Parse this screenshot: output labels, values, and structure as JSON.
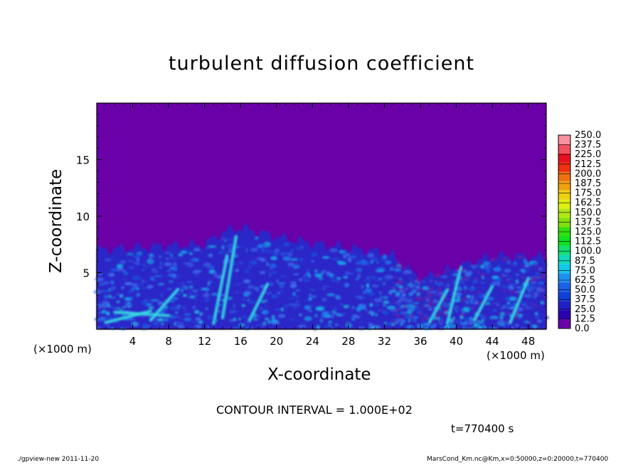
{
  "chart_data": {
    "type": "heatmap",
    "title": "turbulent diffusion coefficient",
    "xlabel": "X-coordinate",
    "ylabel": "Z-coordinate",
    "x_unit": "(×1000 m)",
    "x_unit_right": "(×1000 m)",
    "xlim": [
      0,
      50
    ],
    "ylim": [
      0,
      20
    ],
    "xticks": [
      4,
      8,
      12,
      16,
      20,
      24,
      28,
      32,
      36,
      40,
      44,
      48
    ],
    "yticks": [
      5,
      10,
      15
    ],
    "colorbar": {
      "levels": [
        "0.0",
        "12.5",
        "25.0",
        "37.5",
        "50.0",
        "62.5",
        "75.0",
        "87.5",
        "100.0",
        "112.5",
        "125.0",
        "137.5",
        "150.0",
        "162.5",
        "175.0",
        "187.5",
        "200.0",
        "212.5",
        "225.0",
        "237.5",
        "250.0"
      ],
      "colors": [
        "#6a00a8",
        "#2a00b0",
        "#2020c8",
        "#1040d8",
        "#1a60e8",
        "#1e90f0",
        "#10c8e8",
        "#10d8b8",
        "#10e070",
        "#10e020",
        "#30e010",
        "#80e010",
        "#b0e810",
        "#e0f010",
        "#f0d010",
        "#f0a010",
        "#f07010",
        "#f03010",
        "#e81020",
        "#f05060",
        "#f890a0"
      ]
    },
    "background_value": 0.0,
    "active_region_top_z": [
      7.0,
      7.2,
      7.4,
      7.5,
      8.6,
      9.0,
      8.2,
      7.6,
      7.2,
      6.8,
      6.5,
      4.4,
      6.5,
      6.4
    ],
    "active_region_x": [
      0,
      4,
      8,
      12,
      14,
      16,
      20,
      24,
      28,
      32,
      33,
      36,
      44,
      50
    ]
  },
  "annotations": {
    "contour_interval": "CONTOUR INTERVAL = 1.000E+02",
    "time": "t=770400 s",
    "footer_left": "./gpview-new  2011-11-20",
    "footer_right": "MarsCond_Km.nc@Km,x=0:50000,z=0:20000,t=770400"
  }
}
